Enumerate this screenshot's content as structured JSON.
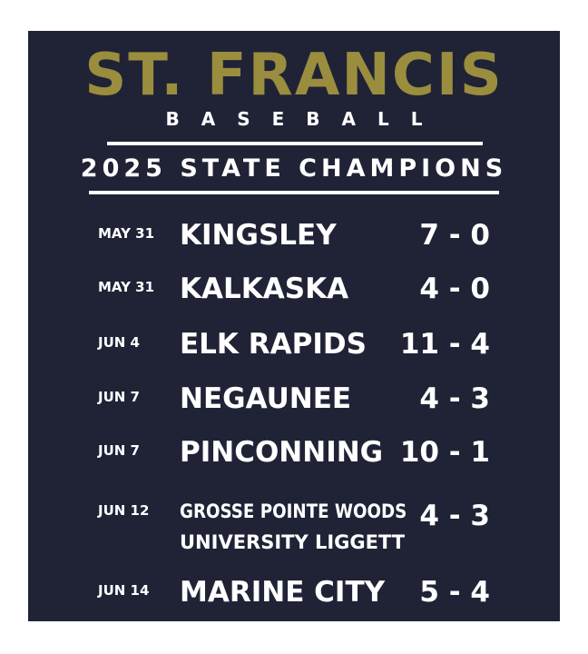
{
  "header": {
    "title": "ST. FRANCIS",
    "subtitle": "BASEBALL",
    "banner": "2025 STATE CHAMPIONS"
  },
  "colors": {
    "background": "#202336",
    "gold": "#9a8d3e",
    "text": "#ffffff"
  },
  "games": [
    {
      "date": "MAY 31",
      "opponent": "KINGSLEY",
      "score": "7 - 0"
    },
    {
      "date": "MAY 31",
      "opponent": "KALKASKA",
      "score": "4 - 0"
    },
    {
      "date": "JUN 4",
      "opponent": "ELK RAPIDS",
      "score": "11 - 4"
    },
    {
      "date": "JUN 7",
      "opponent": "NEGAUNEE",
      "score": "4 - 3"
    },
    {
      "date": "JUN 7",
      "opponent": "PINCONNING",
      "score": "10 - 1"
    },
    {
      "date": "JUN 12",
      "opponent": "GROSSE POINTE WOODS",
      "opponent_line2": "UNIVERSITY LIGGETT",
      "score": "4 - 3"
    },
    {
      "date": "JUN 14",
      "opponent": "MARINE CITY",
      "score": "5 - 4"
    }
  ]
}
